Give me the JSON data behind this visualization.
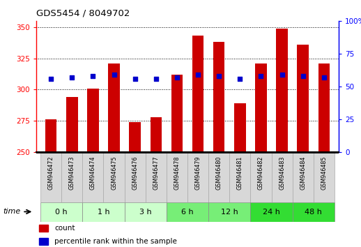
{
  "title": "GDS5454 / 8049702",
  "samples": [
    "GSM946472",
    "GSM946473",
    "GSM946474",
    "GSM946475",
    "GSM946476",
    "GSM946477",
    "GSM946478",
    "GSM946479",
    "GSM946480",
    "GSM946481",
    "GSM946482",
    "GSM946483",
    "GSM946484",
    "GSM946485"
  ],
  "counts": [
    276,
    294,
    301,
    321,
    274,
    278,
    312,
    343,
    338,
    289,
    321,
    349,
    336,
    321
  ],
  "percentile_ranks": [
    56,
    57,
    58,
    59,
    56,
    56,
    57,
    59,
    58,
    56,
    58,
    59,
    58,
    57
  ],
  "time_groups": [
    {
      "label": "0 h",
      "indices": [
        0,
        1
      ],
      "color": "#ccffcc"
    },
    {
      "label": "1 h",
      "indices": [
        2,
        3
      ],
      "color": "#ccffcc"
    },
    {
      "label": "3 h",
      "indices": [
        4,
        5
      ],
      "color": "#ccffcc"
    },
    {
      "label": "6 h",
      "indices": [
        6,
        7
      ],
      "color": "#77ee77"
    },
    {
      "label": "12 h",
      "indices": [
        8,
        9
      ],
      "color": "#77ee77"
    },
    {
      "label": "24 h",
      "indices": [
        10,
        11
      ],
      "color": "#33dd33"
    },
    {
      "label": "48 h",
      "indices": [
        12,
        13
      ],
      "color": "#33dd33"
    }
  ],
  "ylim_left": [
    250,
    355
  ],
  "ylim_right": [
    0,
    100
  ],
  "yticks_left": [
    250,
    275,
    300,
    325,
    350
  ],
  "yticks_right": [
    0,
    25,
    50,
    75,
    100
  ],
  "bar_color": "#cc0000",
  "dot_color": "#0000cc",
  "bg_color": "#ffffff",
  "bar_width": 0.55,
  "label_cell_color": "#d8d8d8",
  "label_cell_border": "#aaaaaa",
  "time_border": "#888888"
}
